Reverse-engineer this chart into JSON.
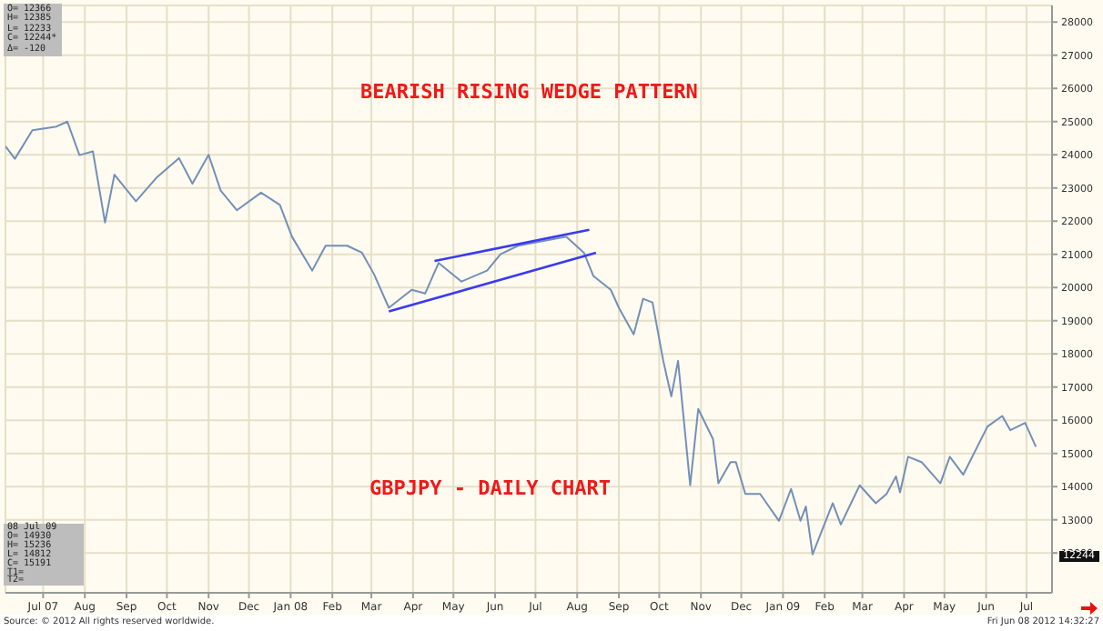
{
  "chart_data": {
    "type": "line",
    "xlim": [
      "2007-06-03",
      "2009-07-20"
    ],
    "ylim": [
      10800,
      28500
    ],
    "yticks": [
      12000,
      13000,
      14000,
      15000,
      16000,
      17000,
      18000,
      19000,
      20000,
      21000,
      22000,
      23000,
      24000,
      25000,
      26000,
      27000,
      28000
    ],
    "xticks": [
      {
        "value": "2007-07-01",
        "label": "Jul 07"
      },
      {
        "value": "2007-08-01",
        "label": "Aug"
      },
      {
        "value": "2007-09-01",
        "label": "Sep"
      },
      {
        "value": "2007-10-01",
        "label": "Oct"
      },
      {
        "value": "2007-11-01",
        "label": "Nov"
      },
      {
        "value": "2007-12-01",
        "label": "Dec"
      },
      {
        "value": "2008-01-01",
        "label": "Jan 08"
      },
      {
        "value": "2008-02-01",
        "label": "Feb"
      },
      {
        "value": "2008-03-01",
        "label": "Mar"
      },
      {
        "value": "2008-04-01",
        "label": "Apr"
      },
      {
        "value": "2008-05-01",
        "label": "May"
      },
      {
        "value": "2008-06-01",
        "label": "Jun"
      },
      {
        "value": "2008-07-01",
        "label": "Jul"
      },
      {
        "value": "2008-08-01",
        "label": "Aug"
      },
      {
        "value": "2008-09-01",
        "label": "Sep"
      },
      {
        "value": "2008-10-01",
        "label": "Oct"
      },
      {
        "value": "2008-11-01",
        "label": "Nov"
      },
      {
        "value": "2008-12-01",
        "label": "Dec"
      },
      {
        "value": "2009-01-01",
        "label": "Jan 09"
      },
      {
        "value": "2009-02-01",
        "label": "Feb"
      },
      {
        "value": "2009-03-01",
        "label": "Mar"
      },
      {
        "value": "2009-04-01",
        "label": "Apr"
      },
      {
        "value": "2009-05-01",
        "label": "May"
      },
      {
        "value": "2009-06-01",
        "label": "Jun"
      },
      {
        "value": "2009-07-01",
        "label": "Jul"
      }
    ],
    "grid": true,
    "marker": "none",
    "line_style": "solid",
    "series": [
      {
        "color": "#7290b8",
        "x": [
          "2007-06-03",
          "2007-06-10",
          "2007-06-23",
          "2007-07-11",
          "2007-07-19",
          "2007-07-28",
          "2007-08-07",
          "2007-08-16",
          "2007-08-23",
          "2007-09-08",
          "2007-09-23",
          "2007-10-10",
          "2007-10-20",
          "2007-11-01",
          "2007-11-10",
          "2007-11-22",
          "2007-12-10",
          "2007-12-24",
          "2008-01-02",
          "2008-01-17",
          "2008-01-27",
          "2008-02-12",
          "2008-02-23",
          "2008-03-03",
          "2008-03-14",
          "2008-03-31",
          "2008-04-10",
          "2008-04-20",
          "2008-05-07",
          "2008-05-26",
          "2008-06-05",
          "2008-06-18",
          "2008-07-24",
          "2008-08-06",
          "2008-08-13",
          "2008-08-26",
          "2008-09-01",
          "2008-09-12",
          "2008-09-19",
          "2008-09-26",
          "2008-10-04",
          "2008-10-10",
          "2008-10-15",
          "2008-10-24",
          "2008-10-30",
          "2008-11-10",
          "2008-11-14",
          "2008-11-23",
          "2008-11-27",
          "2008-12-04",
          "2008-12-15",
          "2008-12-29",
          "2009-01-07",
          "2009-01-14",
          "2009-01-18",
          "2009-01-23",
          "2009-02-07",
          "2009-02-13",
          "2009-02-27",
          "2009-03-11",
          "2009-03-19",
          "2009-03-26",
          "2009-03-29",
          "2009-04-04",
          "2009-04-14",
          "2009-04-28",
          "2009-05-05",
          "2009-05-15",
          "2009-06-02",
          "2009-06-13",
          "2009-06-19",
          "2009-06-30",
          "2009-07-08"
        ],
        "values": [
          24260,
          23880,
          24740,
          24850,
          25000,
          23990,
          24100,
          21960,
          23400,
          22600,
          23300,
          23900,
          23130,
          24000,
          22920,
          22330,
          22860,
          22490,
          21530,
          20510,
          21260,
          21260,
          21050,
          20400,
          19390,
          19930,
          19820,
          20740,
          20180,
          20510,
          21000,
          21260,
          21530,
          21050,
          20350,
          19930,
          19390,
          18590,
          19660,
          19550,
          17790,
          16720,
          17790,
          14040,
          16340,
          15430,
          14100,
          14740,
          14740,
          13780,
          13780,
          12970,
          13930,
          12970,
          13400,
          11960,
          13500,
          12860,
          14040,
          13500,
          13780,
          14310,
          13830,
          14900,
          14740,
          14100,
          14900,
          14360,
          15810,
          16130,
          15700,
          15920,
          15200
        ]
      },
      {
        "color": "#3a3af0",
        "x": [
          "2008-04-17",
          "2008-08-10"
        ],
        "values": [
          20800,
          21740
        ]
      },
      {
        "color": "#3a3af0",
        "x": [
          "2008-03-14",
          "2008-08-15"
        ],
        "values": [
          19280,
          21050
        ]
      }
    ],
    "annotations": [
      "BEARISH RISING WEDGE PATTERN",
      "GBPJPY - DAILY CHART",
      "O= 12366",
      "H= 12385",
      "L= 12233",
      "C= 12244*",
      "Δ= -120",
      "08 Jul 09",
      "O= 14930",
      "H= 15236",
      "L= 14812",
      "C= 15191",
      "T1=",
      "T2=",
      "12244",
      "Source: © 2012 All rights reserved worldwide.",
      "Fri Jun 08 2012 14:32:27"
    ]
  }
}
